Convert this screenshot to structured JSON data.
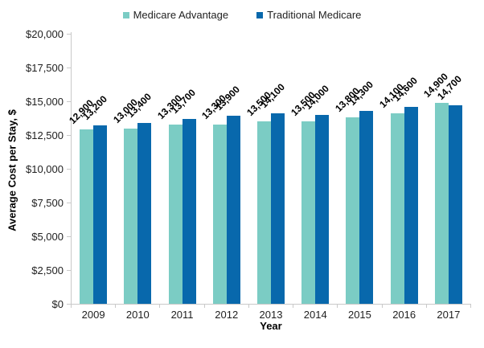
{
  "chart_data": {
    "type": "bar",
    "title": "",
    "xlabel": "Year",
    "ylabel": "Average Cost per Stay, $",
    "categories": [
      "2009",
      "2010",
      "2011",
      "2012",
      "2013",
      "2014",
      "2015",
      "2016",
      "2017"
    ],
    "series": [
      {
        "name": "Medicare Advantage",
        "color": "#7BCCC4",
        "values": [
          12900,
          13000,
          13300,
          13300,
          13500,
          13500,
          13800,
          14100,
          14900
        ],
        "labels": [
          "12,900",
          "13,000",
          "13,300",
          "13,300",
          "13,500",
          "13,500",
          "13,800",
          "14,100",
          "14,900"
        ]
      },
      {
        "name": "Traditional Medicare",
        "color": "#0868AC",
        "values": [
          13200,
          13400,
          13700,
          13900,
          14100,
          14000,
          14300,
          14600,
          14700
        ],
        "labels": [
          "13,200",
          "13,400",
          "13,700",
          "13,900",
          "14,100",
          "14,000",
          "14,300",
          "14,600",
          "14,700"
        ]
      }
    ],
    "ylim": [
      0,
      20000
    ],
    "ytick_step": 2500,
    "ytick_labels": [
      "$0",
      "$2,500",
      "$5,000",
      "$7,500",
      "$10,000",
      "$12,500",
      "$15,000",
      "$17,500",
      "$20,000"
    ],
    "grid": "off",
    "legend_position": "top",
    "data_label_rotation_deg": -45
  },
  "colors": {
    "axis_line": "#C9C9C9",
    "text": "#1F1F1F",
    "data_label_text": "#000000"
  }
}
